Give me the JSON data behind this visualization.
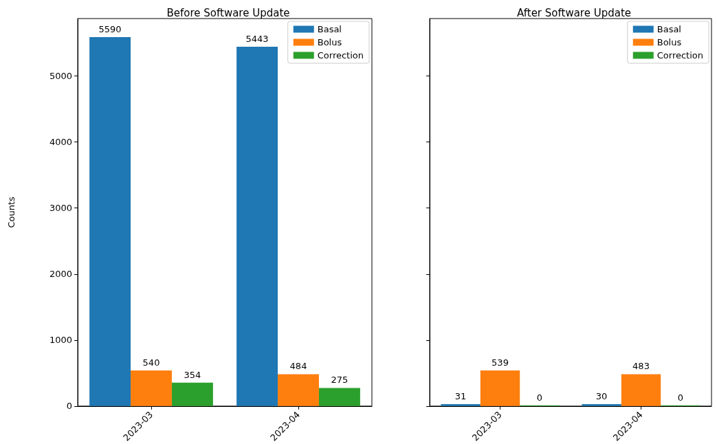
{
  "chart_data": [
    {
      "type": "bar",
      "title": "Before Software Update",
      "ylabel": "Counts",
      "categories": [
        "2023-03",
        "2023-04"
      ],
      "series": [
        {
          "name": "Basal",
          "color": "#1f77b4",
          "values": [
            5590,
            5443
          ]
        },
        {
          "name": "Bolus",
          "color": "#ff7f0e",
          "values": [
            540,
            484
          ]
        },
        {
          "name": "Correction",
          "color": "#2ca02c",
          "values": [
            354,
            275
          ]
        }
      ],
      "ylim": [
        0,
        5870
      ],
      "yticks": [
        0,
        1000,
        2000,
        3000,
        4000,
        5000
      ],
      "grid": false,
      "legend": "top right",
      "data_labels": true
    },
    {
      "type": "bar",
      "title": "After Software Update",
      "categories": [
        "2023-03",
        "2023-04"
      ],
      "series": [
        {
          "name": "Basal",
          "color": "#1f77b4",
          "values": [
            31,
            30
          ]
        },
        {
          "name": "Bolus",
          "color": "#ff7f0e",
          "values": [
            539,
            483
          ]
        },
        {
          "name": "Correction",
          "color": "#2ca02c",
          "values": [
            0,
            0
          ]
        }
      ],
      "ylim": [
        0,
        5870
      ],
      "yticks": [
        0,
        1000,
        2000,
        3000,
        4000,
        5000
      ],
      "grid": false,
      "legend": "top right",
      "data_labels": true,
      "tick_labels": "x"
    }
  ]
}
